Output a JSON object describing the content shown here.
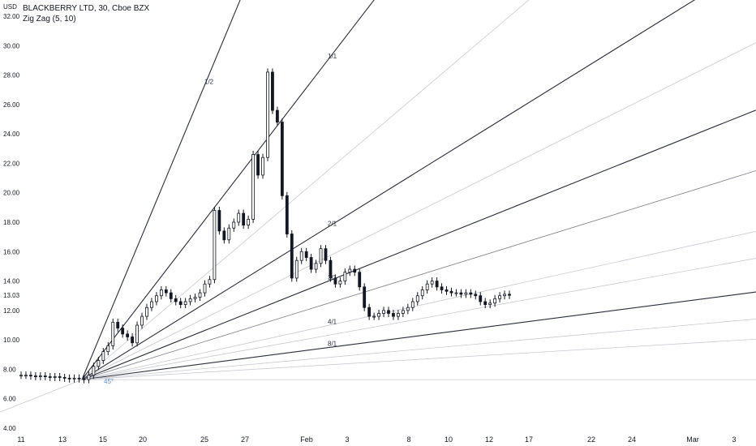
{
  "legend": {
    "symbol": "BLACKBERRY LTD, 30, Cboe BZX",
    "indicator": "Zig Zag (5, 10)"
  },
  "unit_label": "USD",
  "colors": {
    "candle": "#131722",
    "fan_dark": "#2a2e39",
    "fan_light": "#c8cad1",
    "fan_mid": "#7a7e89",
    "angle_label": "#5b8ec7",
    "grid_text": "#131722"
  },
  "chart_data": {
    "type": "candlestick",
    "price_axis": {
      "ticks": [
        "32.00",
        "30.00",
        "28.00",
        "26.00",
        "24.00",
        "22.00",
        "20.00",
        "18.00",
        "16.00",
        "14.00",
        "13.03",
        "12.00",
        "10.00",
        "8.00",
        "6.00",
        "4.00"
      ],
      "tick_values": [
        32,
        30,
        28,
        26,
        24,
        22,
        20,
        18,
        16,
        14,
        13.03,
        12,
        10,
        8,
        6,
        4
      ],
      "range": [
        4,
        32
      ],
      "last_price": "13.03"
    },
    "time_axis": {
      "labels": [
        "11",
        "13",
        "15",
        "20",
        "25",
        "27",
        "Feb",
        "3",
        "8",
        "10",
        "12",
        "17",
        "22",
        "24",
        "Mar",
        "3"
      ],
      "label_index": [
        0,
        1,
        2,
        3,
        4,
        5,
        6,
        7,
        8,
        9,
        10,
        11,
        12,
        13,
        14,
        15
      ]
    },
    "fan": {
      "origin": {
        "date": "Jan 14",
        "price": 7.3
      },
      "lines": [
        {
          "label": "1/2",
          "end_price": 36.0,
          "style": "dark"
        },
        {
          "label": "1/1",
          "end_price": 33.5,
          "style": "dark"
        },
        {
          "label": "",
          "end_price": 32.0,
          "style": "light"
        },
        {
          "label": "2/1",
          "end_price": 30.0,
          "style": "dark"
        },
        {
          "label": "",
          "end_price": 28.5,
          "style": "light"
        },
        {
          "label": "3/1",
          "end_price": 26.8,
          "style": "dark"
        },
        {
          "label": "",
          "end_price": 22.0,
          "style": "mid"
        },
        {
          "label": "4/1",
          "end_price": 18.3,
          "style": "light"
        },
        {
          "label": "",
          "end_price": 16.5,
          "style": "light"
        },
        {
          "label": "8/1",
          "end_price": 14.6,
          "style": "dark"
        },
        {
          "label": "",
          "end_price": 13.0,
          "style": "light"
        },
        {
          "label": "",
          "end_price": 11.1,
          "style": "light"
        }
      ],
      "angle_label": "45°",
      "baseline_price": 7.3
    },
    "closes": [
      7.6,
      7.6,
      7.55,
      7.5,
      7.55,
      7.5,
      7.45,
      7.5,
      7.45,
      7.4,
      7.35,
      7.4,
      7.35,
      7.3,
      7.6,
      8.2,
      8.6,
      9.2,
      9.6,
      11.2,
      10.8,
      10.4,
      10.2,
      9.8,
      11.0,
      11.6,
      12.2,
      12.6,
      13.0,
      13.4,
      13.2,
      12.8,
      12.6,
      12.4,
      12.6,
      12.8,
      12.9,
      13.2,
      13.8,
      14.1,
      18.8,
      17.4,
      16.8,
      17.6,
      18.0,
      18.6,
      17.8,
      18.2,
      22.6,
      21.2,
      22.4,
      28.2,
      25.6,
      24.8,
      19.8,
      17.2,
      14.2,
      15.4,
      16.0,
      15.6,
      14.8,
      15.2,
      16.2,
      15.4,
      14.2,
      13.8,
      14.0,
      14.6,
      14.8,
      14.6,
      13.6,
      12.2,
      11.6,
      11.6,
      11.8,
      12.0,
      11.8,
      11.6,
      11.8,
      12.0,
      12.2,
      12.6,
      13.0,
      13.4,
      13.8,
      14.0,
      13.6,
      13.4,
      13.3,
      13.2,
      13.2,
      13.1,
      13.2,
      13.1,
      13.0,
      12.6,
      12.4,
      12.5,
      12.8,
      13.0,
      13.1,
      13.03
    ]
  }
}
